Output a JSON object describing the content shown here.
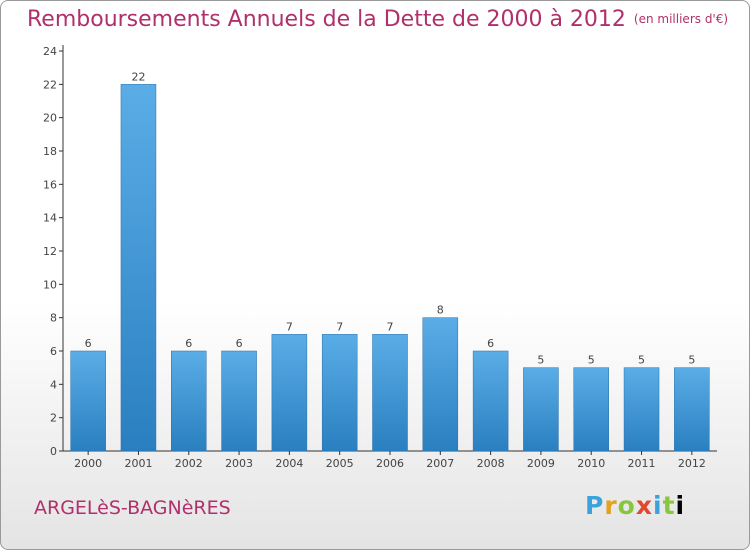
{
  "header": {
    "title": "Remboursements Annuels de la Dette de 2000 à 2012",
    "unit": "(en milliers d'€)"
  },
  "footer": {
    "city": "ARGELèS-BAGNèRES",
    "logo_letters": [
      "P",
      "r",
      "o",
      "x",
      "i",
      "t",
      "i"
    ]
  },
  "colors": {
    "title": "#b0306c",
    "bar_light": "#5aade6",
    "bar_dark": "#2a7fc0",
    "axis": "#333333"
  },
  "chart_data": {
    "type": "bar",
    "title": "Remboursements Annuels de la Dette de 2000 à 2012",
    "subtitle": "(en milliers d'€)",
    "categories": [
      "2000",
      "2001",
      "2002",
      "2003",
      "2004",
      "2005",
      "2006",
      "2007",
      "2008",
      "2009",
      "2010",
      "2011",
      "2012"
    ],
    "values": [
      6,
      22,
      6,
      6,
      7,
      7,
      7,
      8,
      6,
      5,
      5,
      5,
      5
    ],
    "ylim": [
      0,
      24
    ],
    "yticks": [
      0,
      2,
      4,
      6,
      8,
      10,
      12,
      14,
      16,
      18,
      20,
      22,
      24
    ],
    "grid": false,
    "data_labels": true
  }
}
